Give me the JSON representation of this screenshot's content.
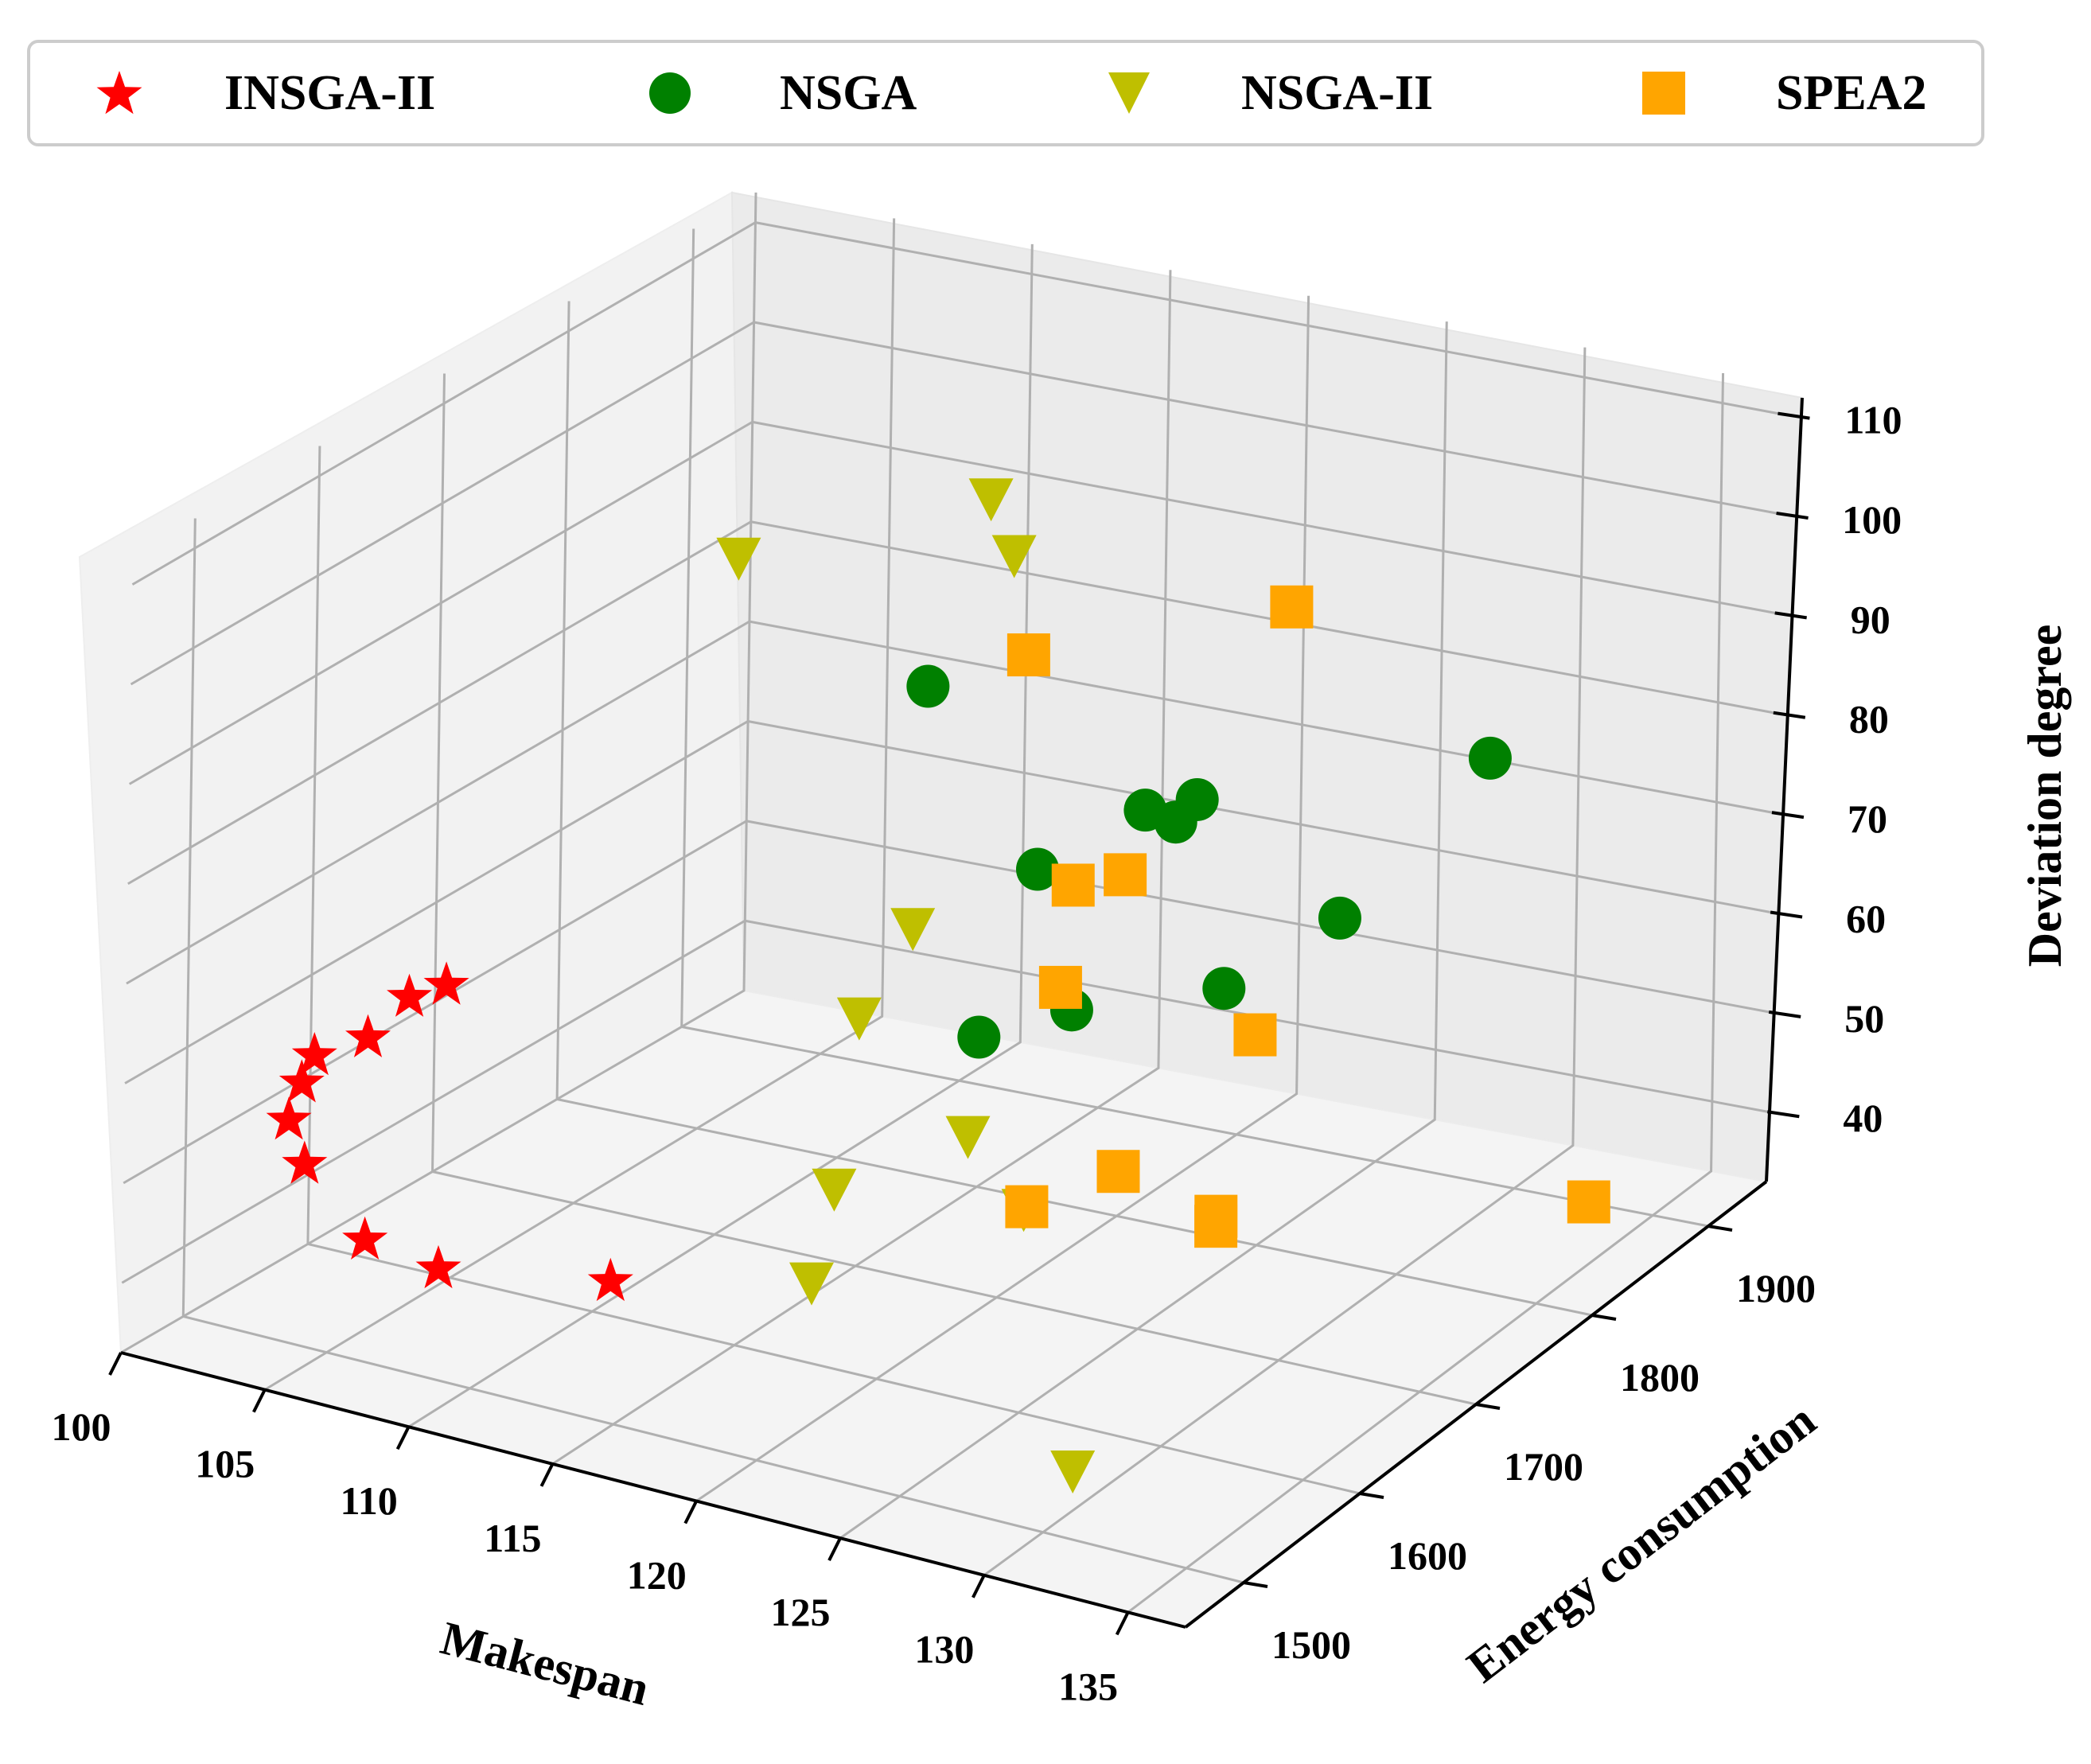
{
  "chart_data": {
    "type": "scatter3d",
    "title": "",
    "xlabel": "Makespan",
    "ylabel": "Energy consumption",
    "zlabel": "Deviation degree",
    "xlim": [
      100,
      137
    ],
    "ylim": [
      1450,
      1950
    ],
    "zlim": [
      33,
      113
    ],
    "xticks": [
      "100",
      "105",
      "110",
      "115",
      "120",
      "125",
      "130",
      "135"
    ],
    "yticks": [
      "1500",
      "1600",
      "1700",
      "1800",
      "1900"
    ],
    "zticks": [
      "40",
      "50",
      "60",
      "70",
      "80",
      "90",
      "100",
      "110"
    ],
    "legend_position": "top",
    "series": [
      {
        "name": "INSGA-II",
        "marker": "star",
        "color": "#ff0000",
        "points": [
          {
            "x": 114,
            "y": 1520,
            "z": 45
          },
          {
            "x": 108,
            "y": 1520,
            "z": 42
          },
          {
            "x": 105,
            "y": 1530,
            "z": 42
          },
          {
            "x": 102,
            "y": 1550,
            "z": 46
          },
          {
            "x": 101,
            "y": 1560,
            "z": 49
          },
          {
            "x": 101,
            "y": 1570,
            "z": 52
          },
          {
            "x": 101,
            "y": 1580,
            "z": 54
          },
          {
            "x": 102,
            "y": 1600,
            "z": 55
          },
          {
            "x": 103,
            "y": 1610,
            "z": 59
          },
          {
            "x": 103,
            "y": 1640,
            "z": 58
          }
        ]
      },
      {
        "name": "NSGA",
        "marker": "circle",
        "color": "#008000",
        "points": [
          {
            "x": 115,
            "y": 1800,
            "z": 48
          },
          {
            "x": 117,
            "y": 1800,
            "z": 66
          },
          {
            "x": 125,
            "y": 1640,
            "z": 70
          },
          {
            "x": 113,
            "y": 1800,
            "z": 82
          },
          {
            "x": 125,
            "y": 1700,
            "z": 85
          },
          {
            "x": 126,
            "y": 1720,
            "z": 85
          },
          {
            "x": 134,
            "y": 1550,
            "z": 86
          },
          {
            "x": 136,
            "y": 1600,
            "z": 90
          },
          {
            "x": 131,
            "y": 1850,
            "z": 81
          },
          {
            "x": 124,
            "y": 1750,
            "z": 79
          }
        ]
      },
      {
        "name": "NSGA-II",
        "marker": "triangle-down",
        "color": "#bfbf00",
        "points": [
          {
            "x": 131,
            "y": 1500,
            "z": 40
          },
          {
            "x": 121,
            "y": 1520,
            "z": 50
          },
          {
            "x": 118,
            "y": 1610,
            "z": 50
          },
          {
            "x": 123,
            "y": 1650,
            "z": 48
          },
          {
            "x": 121,
            "y": 1650,
            "z": 54
          },
          {
            "x": 115,
            "y": 1700,
            "z": 58
          },
          {
            "x": 116,
            "y": 1720,
            "z": 66
          },
          {
            "x": 104,
            "y": 1850,
            "z": 86
          },
          {
            "x": 113,
            "y": 1850,
            "z": 97
          },
          {
            "x": 116,
            "y": 1800,
            "z": 97
          }
        ]
      },
      {
        "name": "SPEA2",
        "marker": "square",
        "color": "#ffa500",
        "points": [
          {
            "x": 136,
            "y": 1820,
            "z": 42
          },
          {
            "x": 131,
            "y": 1620,
            "z": 55
          },
          {
            "x": 131,
            "y": 1620,
            "z": 54
          },
          {
            "x": 126,
            "y": 1580,
            "z": 56
          },
          {
            "x": 120,
            "y": 1750,
            "z": 60
          },
          {
            "x": 117,
            "y": 1830,
            "z": 62
          },
          {
            "x": 118,
            "y": 1850,
            "z": 62
          },
          {
            "x": 129,
            "y": 1700,
            "z": 65
          },
          {
            "x": 114,
            "y": 1860,
            "z": 81
          },
          {
            "x": 128,
            "y": 1750,
            "z": 103
          },
          {
            "x": 130,
            "y": 1560,
            "z": 64
          }
        ]
      }
    ]
  }
}
